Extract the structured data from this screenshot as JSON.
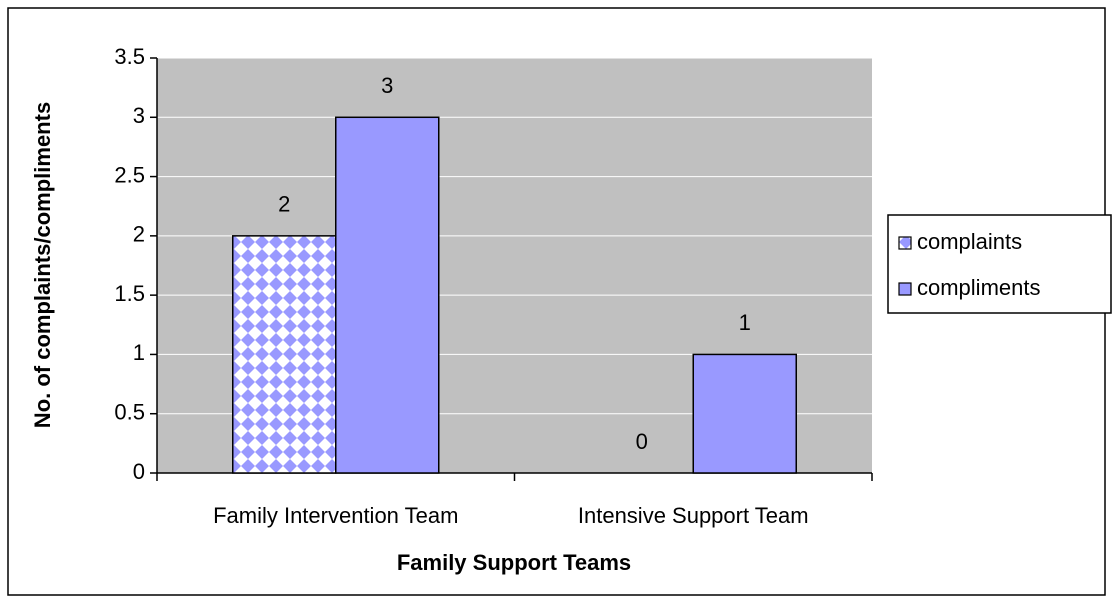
{
  "chart_data": {
    "type": "bar",
    "x_label": "Family Support Teams",
    "y_label": "No. of complaints/compliments",
    "categories": [
      "Family Intervention Team",
      "Intensive Support Team"
    ],
    "series": [
      {
        "name": "complaints",
        "color": "#9999ff",
        "pattern": "diamond",
        "values": [
          2,
          0
        ]
      },
      {
        "name": "compliments",
        "color": "#9999ff",
        "values": [
          3,
          1
        ]
      }
    ],
    "ylim": [
      0,
      3.5
    ],
    "yticks": [
      0,
      0.5,
      1,
      1.5,
      2,
      2.5,
      3,
      3.5
    ],
    "grid": true,
    "legend": "right",
    "plot_background": "#c0c0c0"
  }
}
